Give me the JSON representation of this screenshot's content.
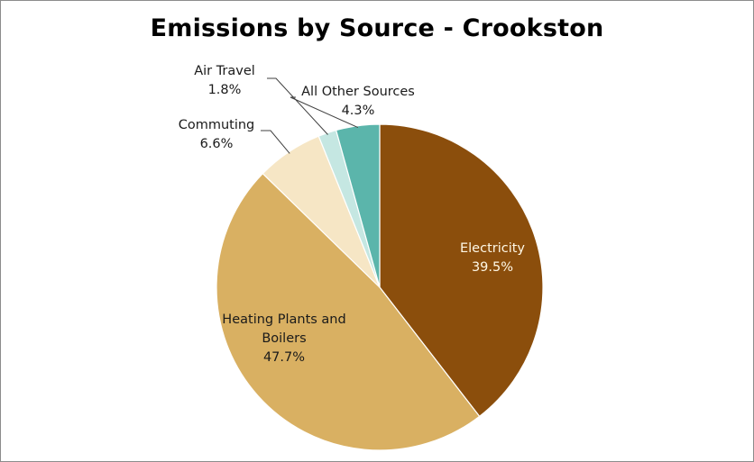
{
  "chart_data": {
    "type": "pie",
    "title": "Emissions by Source - Crookston",
    "slices": [
      {
        "label": "Electricity",
        "value": 39.5,
        "value_label": "39.5%",
        "color": "#8b4e0c",
        "text_color": "#fff8e6",
        "label_placement": "inside"
      },
      {
        "label": "Heating Plants and Boilers",
        "label_lines": [
          "Heating Plants and",
          "Boilers"
        ],
        "value": 47.7,
        "value_label": "47.7%",
        "color": "#d9b062",
        "text_color": "#1a1a1a",
        "label_placement": "inside"
      },
      {
        "label": "Commuting",
        "value": 6.6,
        "value_label": "6.6%",
        "color": "#f6e6c5",
        "text_color": "#1a1a1a",
        "label_placement": "outside"
      },
      {
        "label": "Air Travel",
        "value": 1.8,
        "value_label": "1.8%",
        "color": "#c5e7e2",
        "text_color": "#1a1a1a",
        "label_placement": "outside"
      },
      {
        "label": "All Other Sources",
        "value": 4.3,
        "value_label": "4.3%",
        "color": "#5bb5ab",
        "text_color": "#1a1a1a",
        "label_placement": "outside"
      }
    ],
    "start_angle": "12 o'clock",
    "direction": "clockwise",
    "legend": "none"
  }
}
